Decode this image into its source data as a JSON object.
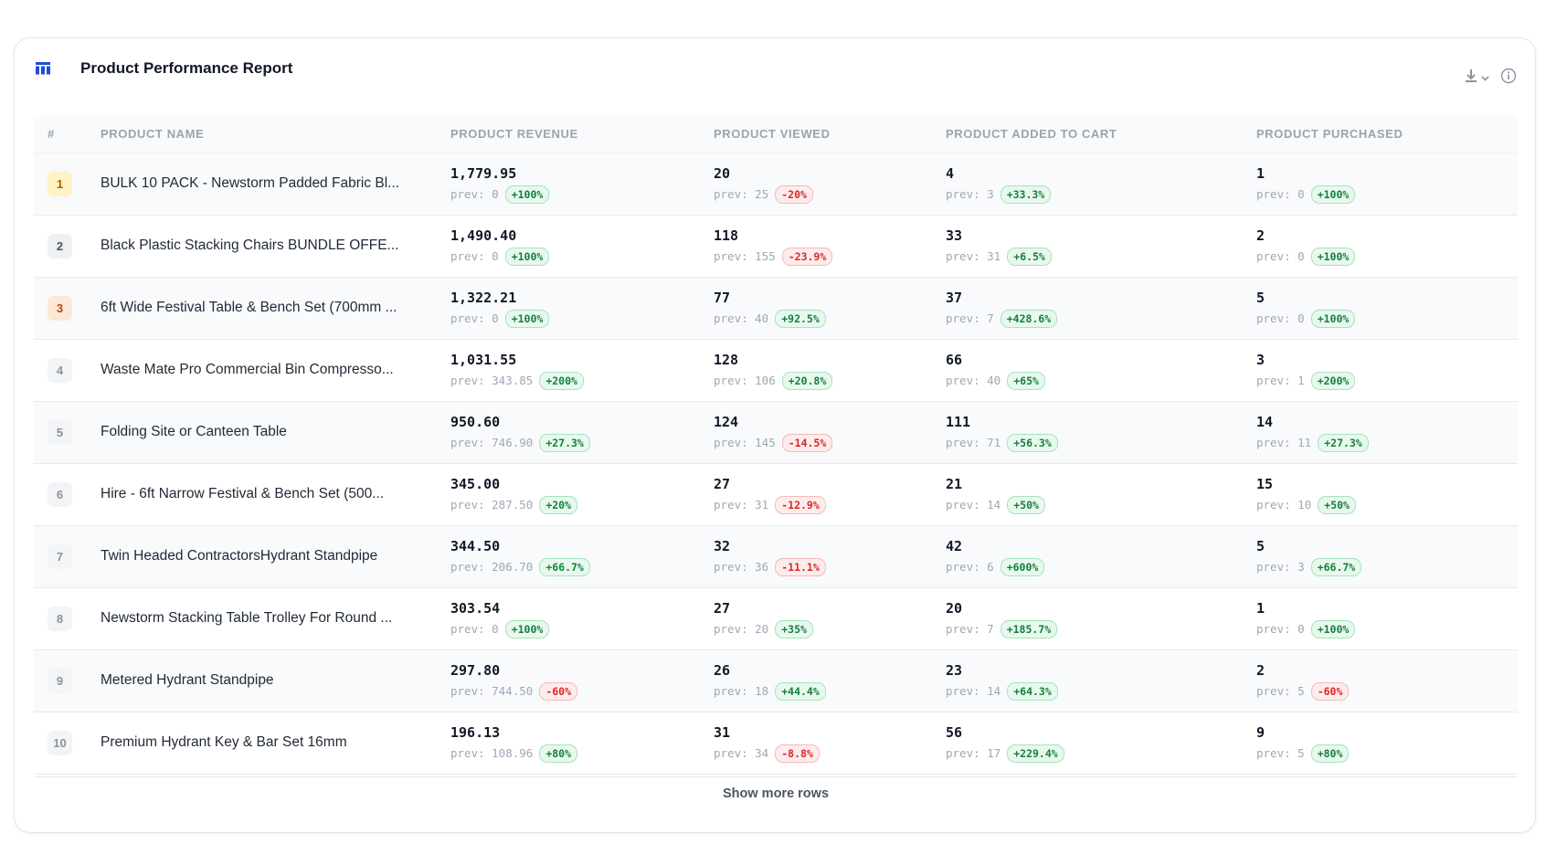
{
  "report": {
    "title": "Product Performance Report",
    "icons": {
      "title": "table-icon",
      "download": "download-icon",
      "info": "info-icon"
    },
    "show_more_label": "Show more rows"
  },
  "columns": [
    "#",
    "PRODUCT NAME",
    "PRODUCT REVENUE",
    "PRODUCT VIEWED",
    "PRODUCT ADDED TO CART",
    "PRODUCT PURCHASED"
  ],
  "rows": [
    {
      "rank": "1",
      "name": "BULK 10 PACK - Newstorm Padded Fabric Bl...",
      "metrics": [
        {
          "value": "1,779.95",
          "prev": "prev: 0",
          "delta": "+100%",
          "dir": "up"
        },
        {
          "value": "20",
          "prev": "prev: 25",
          "delta": "-20%",
          "dir": "down"
        },
        {
          "value": "4",
          "prev": "prev: 3",
          "delta": "+33.3%",
          "dir": "up"
        },
        {
          "value": "1",
          "prev": "prev: 0",
          "delta": "+100%",
          "dir": "up"
        }
      ]
    },
    {
      "rank": "2",
      "name": "Black Plastic Stacking Chairs BUNDLE OFFE...",
      "metrics": [
        {
          "value": "1,490.40",
          "prev": "prev: 0",
          "delta": "+100%",
          "dir": "up"
        },
        {
          "value": "118",
          "prev": "prev: 155",
          "delta": "-23.9%",
          "dir": "down"
        },
        {
          "value": "33",
          "prev": "prev: 31",
          "delta": "+6.5%",
          "dir": "up"
        },
        {
          "value": "2",
          "prev": "prev: 0",
          "delta": "+100%",
          "dir": "up"
        }
      ]
    },
    {
      "rank": "3",
      "name": "6ft Wide Festival Table & Bench Set (700mm ...",
      "metrics": [
        {
          "value": "1,322.21",
          "prev": "prev: 0",
          "delta": "+100%",
          "dir": "up"
        },
        {
          "value": "77",
          "prev": "prev: 40",
          "delta": "+92.5%",
          "dir": "up"
        },
        {
          "value": "37",
          "prev": "prev: 7",
          "delta": "+428.6%",
          "dir": "up"
        },
        {
          "value": "5",
          "prev": "prev: 0",
          "delta": "+100%",
          "dir": "up"
        }
      ]
    },
    {
      "rank": "4",
      "name": "Waste Mate Pro Commercial Bin Compresso...",
      "metrics": [
        {
          "value": "1,031.55",
          "prev": "prev: 343.85",
          "delta": "+200%",
          "dir": "up"
        },
        {
          "value": "128",
          "prev": "prev: 106",
          "delta": "+20.8%",
          "dir": "up"
        },
        {
          "value": "66",
          "prev": "prev: 40",
          "delta": "+65%",
          "dir": "up"
        },
        {
          "value": "3",
          "prev": "prev: 1",
          "delta": "+200%",
          "dir": "up"
        }
      ]
    },
    {
      "rank": "5",
      "name": "Folding Site or Canteen Table",
      "metrics": [
        {
          "value": "950.60",
          "prev": "prev: 746.90",
          "delta": "+27.3%",
          "dir": "up"
        },
        {
          "value": "124",
          "prev": "prev: 145",
          "delta": "-14.5%",
          "dir": "down"
        },
        {
          "value": "111",
          "prev": "prev: 71",
          "delta": "+56.3%",
          "dir": "up"
        },
        {
          "value": "14",
          "prev": "prev: 11",
          "delta": "+27.3%",
          "dir": "up"
        }
      ]
    },
    {
      "rank": "6",
      "name": "Hire - 6ft Narrow Festival & Bench Set (500...",
      "metrics": [
        {
          "value": "345.00",
          "prev": "prev: 287.50",
          "delta": "+20%",
          "dir": "up"
        },
        {
          "value": "27",
          "prev": "prev: 31",
          "delta": "-12.9%",
          "dir": "down"
        },
        {
          "value": "21",
          "prev": "prev: 14",
          "delta": "+50%",
          "dir": "up"
        },
        {
          "value": "15",
          "prev": "prev: 10",
          "delta": "+50%",
          "dir": "up"
        }
      ]
    },
    {
      "rank": "7",
      "name": "Twin Headed ContractorsHydrant Standpipe",
      "metrics": [
        {
          "value": "344.50",
          "prev": "prev: 206.70",
          "delta": "+66.7%",
          "dir": "up"
        },
        {
          "value": "32",
          "prev": "prev: 36",
          "delta": "-11.1%",
          "dir": "down"
        },
        {
          "value": "42",
          "prev": "prev: 6",
          "delta": "+600%",
          "dir": "up"
        },
        {
          "value": "5",
          "prev": "prev: 3",
          "delta": "+66.7%",
          "dir": "up"
        }
      ]
    },
    {
      "rank": "8",
      "name": "Newstorm Stacking Table Trolley For Round ...",
      "metrics": [
        {
          "value": "303.54",
          "prev": "prev: 0",
          "delta": "+100%",
          "dir": "up"
        },
        {
          "value": "27",
          "prev": "prev: 20",
          "delta": "+35%",
          "dir": "up"
        },
        {
          "value": "20",
          "prev": "prev: 7",
          "delta": "+185.7%",
          "dir": "up"
        },
        {
          "value": "1",
          "prev": "prev: 0",
          "delta": "+100%",
          "dir": "up"
        }
      ]
    },
    {
      "rank": "9",
      "name": "Metered Hydrant Standpipe",
      "metrics": [
        {
          "value": "297.80",
          "prev": "prev: 744.50",
          "delta": "-60%",
          "dir": "down"
        },
        {
          "value": "26",
          "prev": "prev: 18",
          "delta": "+44.4%",
          "dir": "up"
        },
        {
          "value": "23",
          "prev": "prev: 14",
          "delta": "+64.3%",
          "dir": "up"
        },
        {
          "value": "2",
          "prev": "prev: 5",
          "delta": "-60%",
          "dir": "down"
        }
      ]
    },
    {
      "rank": "10",
      "name": "Premium Hydrant Key & Bar Set 16mm",
      "metrics": [
        {
          "value": "196.13",
          "prev": "prev: 108.96",
          "delta": "+80%",
          "dir": "up"
        },
        {
          "value": "31",
          "prev": "prev: 34",
          "delta": "-8.8%",
          "dir": "down"
        },
        {
          "value": "56",
          "prev": "prev: 17",
          "delta": "+229.4%",
          "dir": "up"
        },
        {
          "value": "9",
          "prev": "prev: 5",
          "delta": "+80%",
          "dir": "up"
        }
      ]
    }
  ],
  "colors": {
    "accent": "#1d4ed8",
    "up": "#15803d",
    "down": "#dc2626"
  }
}
